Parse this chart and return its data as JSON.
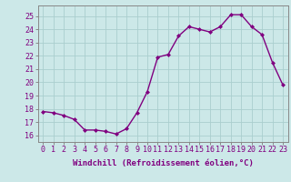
{
  "x": [
    0,
    1,
    2,
    3,
    4,
    5,
    6,
    7,
    8,
    9,
    10,
    11,
    12,
    13,
    14,
    15,
    16,
    17,
    18,
    19,
    20,
    21,
    22,
    23
  ],
  "y": [
    17.8,
    17.7,
    17.5,
    17.2,
    16.4,
    16.4,
    16.3,
    16.1,
    16.5,
    17.7,
    19.3,
    21.9,
    22.1,
    23.5,
    24.2,
    24.0,
    23.8,
    24.2,
    25.1,
    25.1,
    24.2,
    23.6,
    21.5,
    19.8
  ],
  "line_color": "#800080",
  "marker": "D",
  "marker_size": 2.0,
  "line_width": 1.0,
  "bg_color": "#cce8e8",
  "grid_color": "#aacece",
  "xlabel": "Windchill (Refroidissement éolien,°C)",
  "xlabel_fontsize": 6.5,
  "ylabel_ticks": [
    16,
    17,
    18,
    19,
    20,
    21,
    22,
    23,
    24,
    25
  ],
  "xtick_labels": [
    "0",
    "1",
    "2",
    "3",
    "4",
    "5",
    "6",
    "7",
    "8",
    "9",
    "10",
    "11",
    "12",
    "13",
    "14",
    "15",
    "16",
    "17",
    "18",
    "19",
    "20",
    "21",
    "22",
    "23"
  ],
  "ylim": [
    15.5,
    25.8
  ],
  "xlim": [
    -0.5,
    23.5
  ],
  "tick_fontsize": 6.0,
  "spine_color": "#888888"
}
